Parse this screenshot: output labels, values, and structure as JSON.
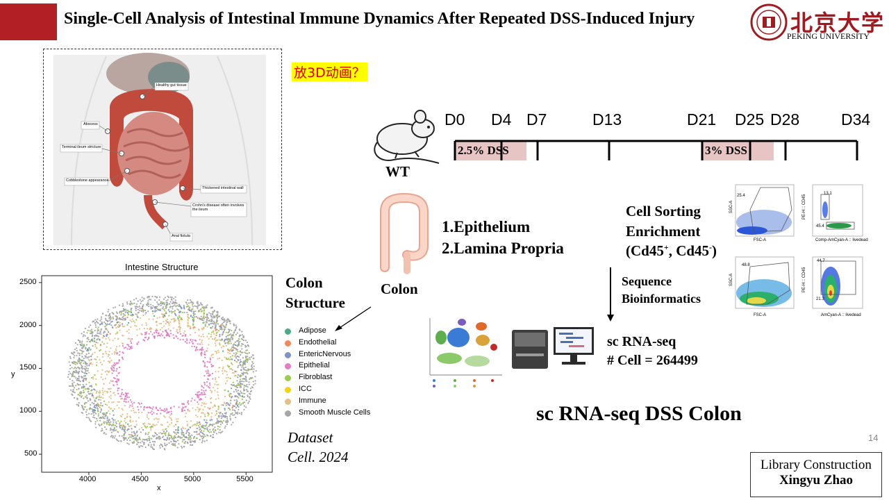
{
  "header": {
    "title": "Single-Cell Analysis of Intestinal Immune Dynamics After Repeated DSS-Induced Injury",
    "university_cn": "北京大学",
    "university_en": "PEKING UNIVERSITY"
  },
  "anatomy": {
    "labels": [
      "Healthy gut tissue",
      "Abscess",
      "Terminal ileum stricture",
      "Cobblestone appearance",
      "Thickened intestinal wall",
      "Crohn's disease often involves the ileum",
      "Anal fistula"
    ]
  },
  "note": "放3D动画？",
  "timeline": {
    "days": [
      "D0",
      "D4",
      "D7",
      "D13",
      "D21",
      "D25",
      "D28",
      "D34"
    ],
    "dss1": "2.5% DSS",
    "dss2": "3% DSS",
    "mouse_label": "WT"
  },
  "colon": {
    "label": "Colon",
    "item1": "1.Epithelium",
    "item2": "2.Lamina Propria"
  },
  "sorting": {
    "line1": "Cell Sorting",
    "line2": "Enrichment",
    "line3_prefix": "(Cd45",
    "sup1": "+",
    "mid": ", Cd45",
    "sup2": "-",
    "end": ")",
    "seq1": "Sequence",
    "seq2": "Bioinformatics"
  },
  "flow": {
    "p1": {
      "gate": "25.4",
      "xlabel": "FSC-A",
      "ylabel": "SSC-A"
    },
    "p2": {
      "gate1": "13.1",
      "gate2": "45.4",
      "xlabel": "Comp-AmCyan-A :: livedead",
      "ylabel": "PE-H :: CD45"
    },
    "p3": {
      "gate": "48.8",
      "xlabel": "FSC-A",
      "ylabel": "SSC-A"
    },
    "p4": {
      "gate1": "44.7",
      "gate2": "21.3",
      "xlabel": "AmCyan-A :: livedead",
      "ylabel": "PE-H :: CD45"
    }
  },
  "scrna": {
    "line1": "sc RNA-seq",
    "line2": "# Cell =  264499",
    "bottom_title": "sc RNA-seq DSS Colon"
  },
  "spatial": {
    "colon_structure1": "Colon",
    "colon_structure2": "Structure",
    "dataset1": "Dataset",
    "dataset2": "Cell. 2024"
  },
  "chart_data": {
    "type": "scatter",
    "title": "Intestine Structure",
    "xlabel": "x",
    "ylabel": "y",
    "xlim": [
      3550,
      5750
    ],
    "ylim": [
      290,
      2580
    ],
    "xticks": [
      4000,
      4500,
      5000,
      5500
    ],
    "yticks": [
      500,
      1000,
      1500,
      2000,
      2500
    ],
    "legend": [
      {
        "name": "Adipose",
        "color": "#4daa86"
      },
      {
        "name": "Endothelial",
        "color": "#ef8a5a"
      },
      {
        "name": "EntericNervous",
        "color": "#7f93c7"
      },
      {
        "name": "Epithelial",
        "color": "#e17fc2"
      },
      {
        "name": "Fibroblast",
        "color": "#9ccc4f"
      },
      {
        "name": "ICC",
        "color": "#f2d21a"
      },
      {
        "name": "Immune",
        "color": "#e3c08a"
      },
      {
        "name": "Smooth Muscle Cells",
        "color": "#a6a6a6"
      }
    ]
  }
}
